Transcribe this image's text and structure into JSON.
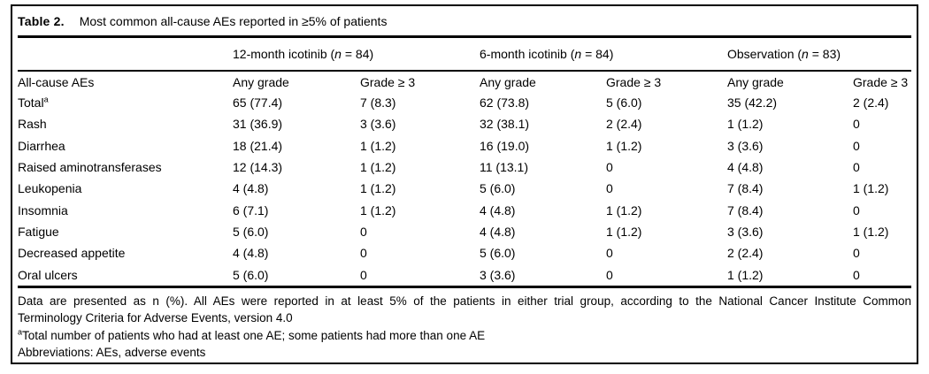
{
  "table": {
    "label": "Table 2.",
    "title": "Most common all-cause AEs reported in ≥5% of patients",
    "row_header": "All-cause AEs",
    "groups": [
      {
        "pre": "12-month icotinib (",
        "n": "n",
        "post": " = 84)"
      },
      {
        "pre": "6-month icotinib (",
        "n": "n",
        "post": " = 84)"
      },
      {
        "pre": "Observation (",
        "n": "n",
        "post": " = 83)"
      }
    ],
    "sub_headers": [
      "Any grade",
      "Grade ≥ 3"
    ],
    "rows": [
      {
        "label": "Total",
        "sup": "a",
        "values": [
          "65 (77.4)",
          "7 (8.3)",
          "62 (73.8)",
          "5 (6.0)",
          "35 (42.2)",
          "2 (2.4)"
        ]
      },
      {
        "label": "Rash",
        "values": [
          "31 (36.9)",
          "3 (3.6)",
          "32 (38.1)",
          "2 (2.4)",
          "1 (1.2)",
          "0"
        ]
      },
      {
        "label": "Diarrhea",
        "values": [
          "18 (21.4)",
          "1 (1.2)",
          "16 (19.0)",
          "1 (1.2)",
          "3 (3.6)",
          "0"
        ]
      },
      {
        "label": "Raised aminotransferases",
        "values": [
          "12 (14.3)",
          "1 (1.2)",
          "11 (13.1)",
          "0",
          "4 (4.8)",
          "0"
        ]
      },
      {
        "label": "Leukopenia",
        "values": [
          "4 (4.8)",
          "1 (1.2)",
          "5 (6.0)",
          "0",
          "7 (8.4)",
          "1 (1.2)"
        ]
      },
      {
        "label": "Insomnia",
        "values": [
          "6 (7.1)",
          "1 (1.2)",
          "4 (4.8)",
          "1 (1.2)",
          "7 (8.4)",
          "0"
        ]
      },
      {
        "label": "Fatigue",
        "values": [
          "5 (6.0)",
          "0",
          "4 (4.8)",
          "1 (1.2)",
          "3 (3.6)",
          "1 (1.2)"
        ]
      },
      {
        "label": "Decreased appetite",
        "values": [
          "4 (4.8)",
          "0",
          "5 (6.0)",
          "0",
          "2 (2.4)",
          "0"
        ]
      },
      {
        "label": "Oral ulcers",
        "values": [
          "5 (6.0)",
          "0",
          "3 (3.6)",
          "0",
          "1 (1.2)",
          "0"
        ]
      }
    ],
    "footnotes": {
      "line1": "Data are presented as n (%). All AEs were reported in at least 5% of the patients in either trial group, according to the National Cancer Institute Common",
      "line2": "Terminology Criteria for Adverse Events, version 4.0",
      "note_sup": "a",
      "note_text": "Total number of patients who had at least one AE; some patients had more than one AE",
      "abbreviations": "Abbreviations: AEs, adverse events"
    }
  }
}
